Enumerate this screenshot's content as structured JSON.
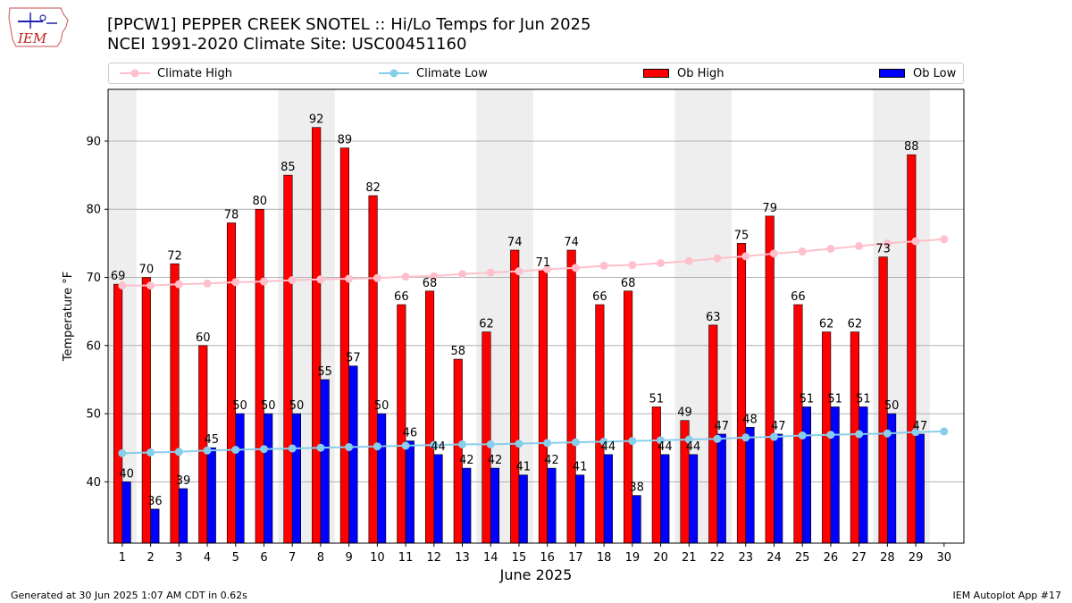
{
  "header": {
    "title_line1": "[PPCW1] PEPPER CREEK SNOTEL :: Hi/Lo Temps for Jun 2025",
    "title_line2": "NCEI 1991-2020 Climate Site: USC00451160",
    "logo_text": "IEM"
  },
  "footer": {
    "generated": "Generated at 30 Jun 2025 1:07 AM CDT in 0.62s",
    "app": "IEM Autoplot App #17"
  },
  "colors": {
    "ob_high": "#ff0000",
    "ob_low": "#0000ff",
    "climate_high": "#ffc0cb",
    "climate_low": "#87ceeb",
    "weekend_band": "#eeeeee",
    "grid": "#b0b0b0"
  },
  "chart_data": {
    "type": "bar",
    "xlabel": "June 2025",
    "ylabel": "Temperature °F",
    "ylim": [
      31,
      97.6
    ],
    "yticks": [
      40,
      50,
      60,
      70,
      80,
      90
    ],
    "grid": "horizontal",
    "legend_placement": "top",
    "categories": [
      "1",
      "2",
      "3",
      "4",
      "5",
      "6",
      "7",
      "8",
      "9",
      "10",
      "11",
      "12",
      "13",
      "14",
      "15",
      "16",
      "17",
      "18",
      "19",
      "20",
      "21",
      "22",
      "23",
      "24",
      "25",
      "26",
      "27",
      "28",
      "29",
      "30"
    ],
    "shaded_days": [
      1,
      7,
      8,
      14,
      15,
      21,
      22,
      28,
      29
    ],
    "series": [
      {
        "name": "Climate High",
        "kind": "line",
        "values": [
          68.8,
          68.8,
          69.0,
          69.1,
          69.3,
          69.4,
          69.6,
          69.7,
          69.8,
          69.9,
          70.1,
          70.2,
          70.5,
          70.7,
          70.9,
          71.2,
          71.4,
          71.7,
          71.8,
          72.1,
          72.4,
          72.8,
          73.1,
          73.5,
          73.8,
          74.2,
          74.6,
          75.0,
          75.3,
          75.6
        ]
      },
      {
        "name": "Climate Low",
        "kind": "line",
        "values": [
          44.2,
          44.3,
          44.4,
          44.6,
          44.7,
          44.8,
          44.9,
          45.0,
          45.1,
          45.2,
          45.3,
          45.4,
          45.5,
          45.5,
          45.6,
          45.7,
          45.8,
          45.9,
          46.0,
          46.1,
          46.2,
          46.3,
          46.5,
          46.6,
          46.8,
          46.9,
          47.0,
          47.1,
          47.3,
          47.4
        ]
      },
      {
        "name": "Ob High",
        "kind": "bar",
        "values": [
          69,
          70,
          72,
          60,
          78,
          80,
          85,
          92,
          89,
          82,
          66,
          68,
          58,
          62,
          74,
          71,
          74,
          66,
          68,
          51,
          49,
          63,
          75,
          79,
          66,
          62,
          62,
          73,
          88,
          null
        ]
      },
      {
        "name": "Ob Low",
        "kind": "bar",
        "values": [
          40,
          36,
          39,
          45,
          50,
          50,
          50,
          55,
          57,
          50,
          46,
          44,
          42,
          42,
          41,
          42,
          41,
          44,
          38,
          44,
          44,
          47,
          48,
          47,
          51,
          51,
          51,
          50,
          47,
          null
        ]
      }
    ]
  }
}
